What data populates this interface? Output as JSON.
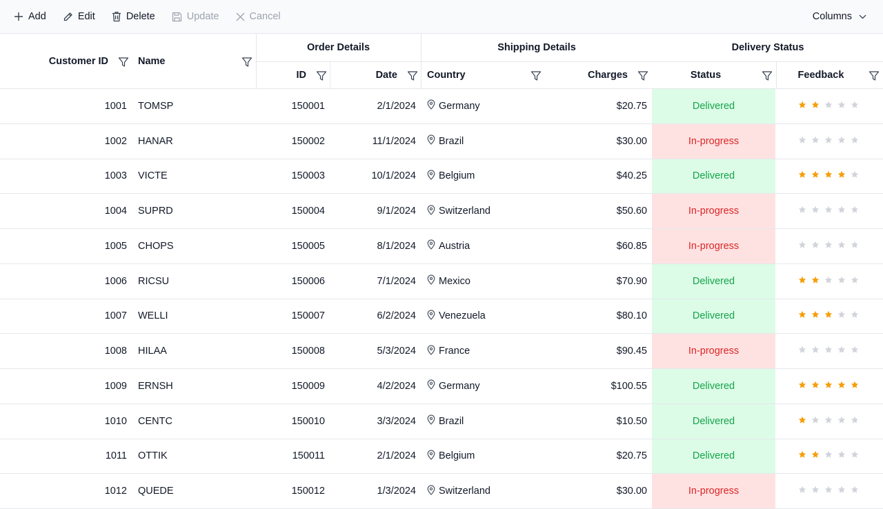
{
  "toolbar": {
    "add": "Add",
    "edit": "Edit",
    "delete": "Delete",
    "update": "Update",
    "cancel": "Cancel",
    "columns": "Columns"
  },
  "headers": {
    "customer_id": "Customer ID",
    "name": "Name",
    "order_details": "Order Details",
    "id": "ID",
    "date": "Date",
    "shipping_details": "Shipping Details",
    "country": "Country",
    "charges": "Charges",
    "delivery_status": "Delivery Status",
    "status": "Status",
    "feedback": "Feedback"
  },
  "colors": {
    "delivered_bg": "#dcfce7",
    "delivered_text": "#16a34a",
    "progress_bg": "#fee2e2",
    "progress_text": "#dc2626",
    "star_on": "#f59e0b",
    "star_off": "#d1d5db"
  },
  "max_rating": 5,
  "rows": [
    {
      "customer_id": "1001",
      "name": "TOMSP",
      "id": "150001",
      "date": "2/1/2024",
      "country": "Germany",
      "charges": "$20.75",
      "status": "Delivered",
      "rating": 2
    },
    {
      "customer_id": "1002",
      "name": "HANAR",
      "id": "150002",
      "date": "11/1/2024",
      "country": "Brazil",
      "charges": "$30.00",
      "status": "In-progress",
      "rating": 0
    },
    {
      "customer_id": "1003",
      "name": "VICTE",
      "id": "150003",
      "date": "10/1/2024",
      "country": "Belgium",
      "charges": "$40.25",
      "status": "Delivered",
      "rating": 4
    },
    {
      "customer_id": "1004",
      "name": "SUPRD",
      "id": "150004",
      "date": "9/1/2024",
      "country": "Switzerland",
      "charges": "$50.60",
      "status": "In-progress",
      "rating": 0
    },
    {
      "customer_id": "1005",
      "name": "CHOPS",
      "id": "150005",
      "date": "8/1/2024",
      "country": "Austria",
      "charges": "$60.85",
      "status": "In-progress",
      "rating": 0
    },
    {
      "customer_id": "1006",
      "name": "RICSU",
      "id": "150006",
      "date": "7/1/2024",
      "country": "Mexico",
      "charges": "$70.90",
      "status": "Delivered",
      "rating": 2
    },
    {
      "customer_id": "1007",
      "name": "WELLI",
      "id": "150007",
      "date": "6/2/2024",
      "country": "Venezuela",
      "charges": "$80.10",
      "status": "Delivered",
      "rating": 3
    },
    {
      "customer_id": "1008",
      "name": "HILAA",
      "id": "150008",
      "date": "5/3/2024",
      "country": "France",
      "charges": "$90.45",
      "status": "In-progress",
      "rating": 0
    },
    {
      "customer_id": "1009",
      "name": "ERNSH",
      "id": "150009",
      "date": "4/2/2024",
      "country": "Germany",
      "charges": "$100.55",
      "status": "Delivered",
      "rating": 5
    },
    {
      "customer_id": "1010",
      "name": "CENTC",
      "id": "150010",
      "date": "3/3/2024",
      "country": "Brazil",
      "charges": "$10.50",
      "status": "Delivered",
      "rating": 1
    },
    {
      "customer_id": "1011",
      "name": "OTTIK",
      "id": "150011",
      "date": "2/1/2024",
      "country": "Belgium",
      "charges": "$20.75",
      "status": "Delivered",
      "rating": 2
    },
    {
      "customer_id": "1012",
      "name": "QUEDE",
      "id": "150012",
      "date": "1/3/2024",
      "country": "Switzerland",
      "charges": "$30.00",
      "status": "In-progress",
      "rating": 0
    }
  ]
}
